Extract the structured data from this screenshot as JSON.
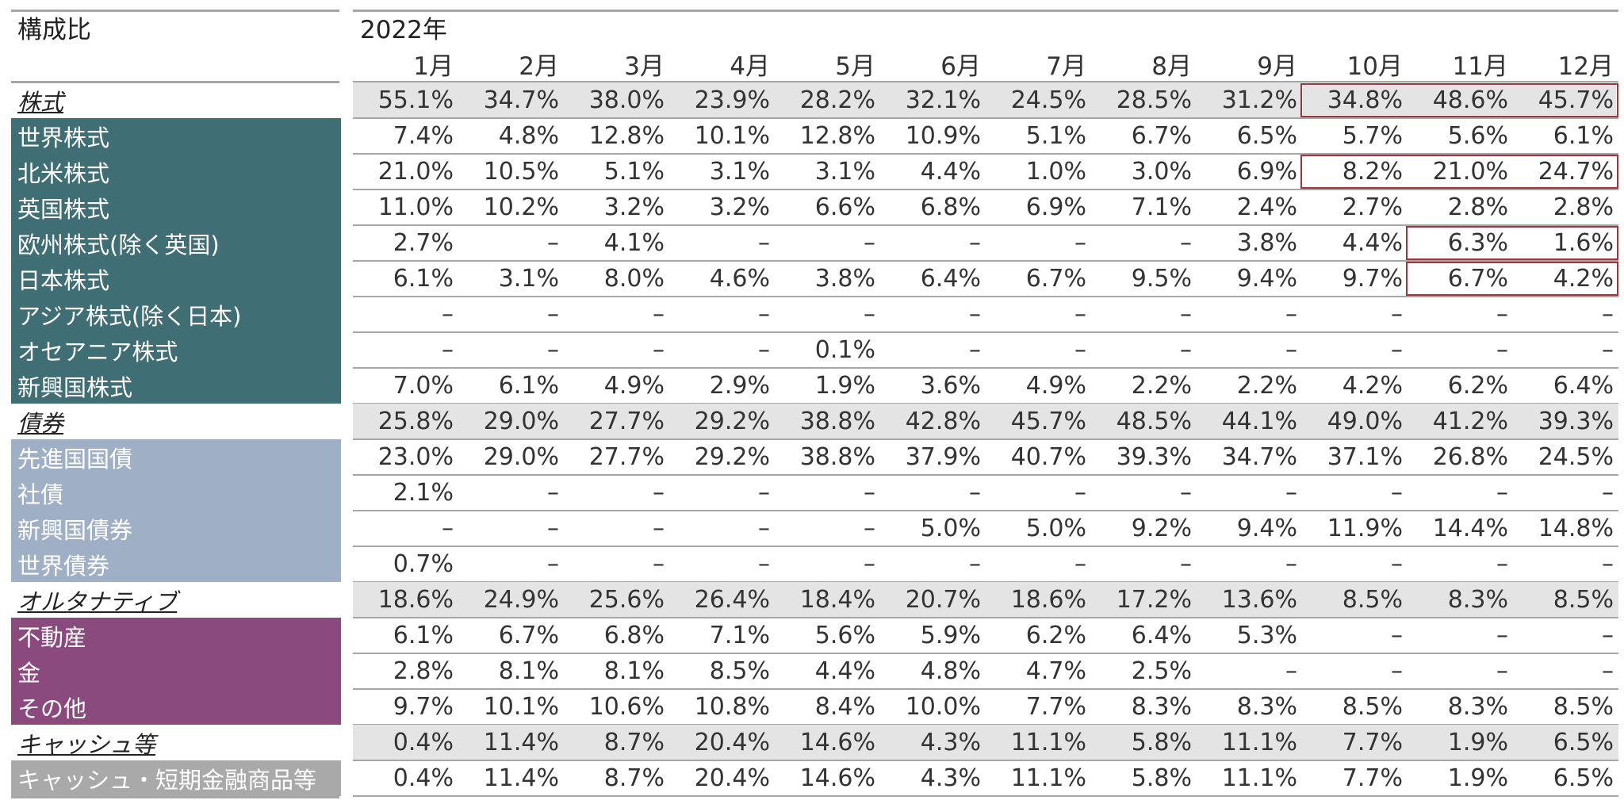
{
  "header": {
    "title": "構成比",
    "year": "2022年",
    "months": [
      "1月",
      "2月",
      "3月",
      "4月",
      "5月",
      "6月",
      "7月",
      "8月",
      "9月",
      "10月",
      "11月",
      "12月"
    ]
  },
  "colors": {
    "株式": "#3f6e74",
    "債券": "#9fb0c6",
    "オルタナティブ": "#8b4a7e",
    "キャッシュ等": "#a9a9a9",
    "category_row": "#e4e4e4",
    "highlight": "#a4343a"
  },
  "rows": [
    {
      "label": "株式",
      "kind": "category",
      "group": "株式",
      "values": [
        "55.1%",
        "34.7%",
        "38.0%",
        "23.9%",
        "28.2%",
        "32.1%",
        "24.5%",
        "28.5%",
        "31.2%",
        "34.8%",
        "48.6%",
        "45.7%"
      ]
    },
    {
      "label": "世界株式",
      "kind": "item",
      "group": "株式",
      "values": [
        "7.4%",
        "4.8%",
        "12.8%",
        "10.1%",
        "12.8%",
        "10.9%",
        "5.1%",
        "6.7%",
        "6.5%",
        "5.7%",
        "5.6%",
        "6.1%"
      ]
    },
    {
      "label": "北米株式",
      "kind": "item",
      "group": "株式",
      "values": [
        "21.0%",
        "10.5%",
        "5.1%",
        "3.1%",
        "3.1%",
        "4.4%",
        "1.0%",
        "3.0%",
        "6.9%",
        "8.2%",
        "21.0%",
        "24.7%"
      ]
    },
    {
      "label": "英国株式",
      "kind": "item",
      "group": "株式",
      "values": [
        "11.0%",
        "10.2%",
        "3.2%",
        "3.2%",
        "6.6%",
        "6.8%",
        "6.9%",
        "7.1%",
        "2.4%",
        "2.7%",
        "2.8%",
        "2.8%"
      ]
    },
    {
      "label": "欧州株式(除く英国)",
      "kind": "item",
      "group": "株式",
      "values": [
        "2.7%",
        "–",
        "4.1%",
        "–",
        "–",
        "–",
        "–",
        "–",
        "3.8%",
        "4.4%",
        "6.3%",
        "1.6%"
      ]
    },
    {
      "label": "日本株式",
      "kind": "item",
      "group": "株式",
      "values": [
        "6.1%",
        "3.1%",
        "8.0%",
        "4.6%",
        "3.8%",
        "6.4%",
        "6.7%",
        "9.5%",
        "9.4%",
        "9.7%",
        "6.7%",
        "4.2%"
      ]
    },
    {
      "label": "アジア株式(除く日本)",
      "kind": "item",
      "group": "株式",
      "values": [
        "–",
        "–",
        "–",
        "–",
        "–",
        "–",
        "–",
        "–",
        "–",
        "–",
        "–",
        "–"
      ]
    },
    {
      "label": "オセアニア株式",
      "kind": "item",
      "group": "株式",
      "values": [
        "–",
        "–",
        "–",
        "–",
        "0.1%",
        "–",
        "–",
        "–",
        "–",
        "–",
        "–",
        "–"
      ]
    },
    {
      "label": "新興国株式",
      "kind": "item",
      "group": "株式",
      "values": [
        "7.0%",
        "6.1%",
        "4.9%",
        "2.9%",
        "1.9%",
        "3.6%",
        "4.9%",
        "2.2%",
        "2.2%",
        "4.2%",
        "6.2%",
        "6.4%"
      ]
    },
    {
      "label": "債券",
      "kind": "category",
      "group": "債券",
      "values": [
        "25.8%",
        "29.0%",
        "27.7%",
        "29.2%",
        "38.8%",
        "42.8%",
        "45.7%",
        "48.5%",
        "44.1%",
        "49.0%",
        "41.2%",
        "39.3%"
      ]
    },
    {
      "label": "先進国国債",
      "kind": "item",
      "group": "債券",
      "values": [
        "23.0%",
        "29.0%",
        "27.7%",
        "29.2%",
        "38.8%",
        "37.9%",
        "40.7%",
        "39.3%",
        "34.7%",
        "37.1%",
        "26.8%",
        "24.5%"
      ]
    },
    {
      "label": "社債",
      "kind": "item",
      "group": "債券",
      "values": [
        "2.1%",
        "–",
        "–",
        "–",
        "–",
        "–",
        "–",
        "–",
        "–",
        "–",
        "–",
        "–"
      ]
    },
    {
      "label": "新興国債券",
      "kind": "item",
      "group": "債券",
      "values": [
        "–",
        "–",
        "–",
        "–",
        "–",
        "5.0%",
        "5.0%",
        "9.2%",
        "9.4%",
        "11.9%",
        "14.4%",
        "14.8%"
      ]
    },
    {
      "label": "世界債券",
      "kind": "item",
      "group": "債券",
      "values": [
        "0.7%",
        "–",
        "–",
        "–",
        "–",
        "–",
        "–",
        "–",
        "–",
        "–",
        "–",
        "–"
      ]
    },
    {
      "label": "オルタナティブ",
      "kind": "category",
      "group": "オルタナティブ",
      "values": [
        "18.6%",
        "24.9%",
        "25.6%",
        "26.4%",
        "18.4%",
        "20.7%",
        "18.6%",
        "17.2%",
        "13.6%",
        "8.5%",
        "8.3%",
        "8.5%"
      ]
    },
    {
      "label": "不動産",
      "kind": "item",
      "group": "オルタナティブ",
      "values": [
        "6.1%",
        "6.7%",
        "6.8%",
        "7.1%",
        "5.6%",
        "5.9%",
        "6.2%",
        "6.4%",
        "5.3%",
        "–",
        "–",
        "–"
      ]
    },
    {
      "label": "金",
      "kind": "item",
      "group": "オルタナティブ",
      "values": [
        "2.8%",
        "8.1%",
        "8.1%",
        "8.5%",
        "4.4%",
        "4.8%",
        "4.7%",
        "2.5%",
        "–",
        "–",
        "–",
        "–"
      ]
    },
    {
      "label": "その他",
      "kind": "item",
      "group": "オルタナティブ",
      "values": [
        "9.7%",
        "10.1%",
        "10.6%",
        "10.8%",
        "8.4%",
        "10.0%",
        "7.7%",
        "8.3%",
        "8.3%",
        "8.5%",
        "8.3%",
        "8.5%"
      ]
    },
    {
      "label": "キャッシュ等",
      "kind": "category",
      "group": "キャッシュ等",
      "values": [
        "0.4%",
        "11.4%",
        "8.7%",
        "20.4%",
        "14.6%",
        "4.3%",
        "11.1%",
        "5.8%",
        "11.1%",
        "7.7%",
        "1.9%",
        "6.5%"
      ]
    },
    {
      "label": "キャッシュ・短期金融商品等",
      "kind": "item",
      "group": "キャッシュ等",
      "values": [
        "0.4%",
        "11.4%",
        "8.7%",
        "20.4%",
        "14.6%",
        "4.3%",
        "11.1%",
        "5.8%",
        "11.1%",
        "7.7%",
        "1.9%",
        "6.5%"
      ]
    }
  ],
  "highlights": [
    {
      "row": "株式",
      "months": [
        "10月",
        "11月",
        "12月"
      ]
    },
    {
      "row": "北米株式",
      "months": [
        "10月",
        "11月",
        "12月"
      ]
    },
    {
      "row": "欧州株式(除く英国)",
      "months": [
        "11月",
        "12月"
      ]
    },
    {
      "row": "日本株式",
      "months": [
        "11月",
        "12月"
      ]
    }
  ],
  "chart_data": {
    "type": "table",
    "title": "構成比",
    "columns": [
      "2022年1月",
      "2月",
      "3月",
      "4月",
      "5月",
      "6月",
      "7月",
      "8月",
      "9月",
      "10月",
      "11月",
      "12月"
    ],
    "unit": "%",
    "series": [
      {
        "name": "株式",
        "values": [
          55.1,
          34.7,
          38.0,
          23.9,
          28.2,
          32.1,
          24.5,
          28.5,
          31.2,
          34.8,
          48.6,
          45.7
        ]
      },
      {
        "name": "世界株式",
        "values": [
          7.4,
          4.8,
          12.8,
          10.1,
          12.8,
          10.9,
          5.1,
          6.7,
          6.5,
          5.7,
          5.6,
          6.1
        ]
      },
      {
        "name": "北米株式",
        "values": [
          21.0,
          10.5,
          5.1,
          3.1,
          3.1,
          4.4,
          1.0,
          3.0,
          6.9,
          8.2,
          21.0,
          24.7
        ]
      },
      {
        "name": "英国株式",
        "values": [
          11.0,
          10.2,
          3.2,
          3.2,
          6.6,
          6.8,
          6.9,
          7.1,
          2.4,
          2.7,
          2.8,
          2.8
        ]
      },
      {
        "name": "欧州株式(除く英国)",
        "values": [
          2.7,
          null,
          4.1,
          null,
          null,
          null,
          null,
          null,
          3.8,
          4.4,
          6.3,
          1.6
        ]
      },
      {
        "name": "日本株式",
        "values": [
          6.1,
          3.1,
          8.0,
          4.6,
          3.8,
          6.4,
          6.7,
          9.5,
          9.4,
          9.7,
          6.7,
          4.2
        ]
      },
      {
        "name": "アジア株式(除く日本)",
        "values": [
          null,
          null,
          null,
          null,
          null,
          null,
          null,
          null,
          null,
          null,
          null,
          null
        ]
      },
      {
        "name": "オセアニア株式",
        "values": [
          null,
          null,
          null,
          null,
          0.1,
          null,
          null,
          null,
          null,
          null,
          null,
          null
        ]
      },
      {
        "name": "新興国株式",
        "values": [
          7.0,
          6.1,
          4.9,
          2.9,
          1.9,
          3.6,
          4.9,
          2.2,
          2.2,
          4.2,
          6.2,
          6.4
        ]
      },
      {
        "name": "債券",
        "values": [
          25.8,
          29.0,
          27.7,
          29.2,
          38.8,
          42.8,
          45.7,
          48.5,
          44.1,
          49.0,
          41.2,
          39.3
        ]
      },
      {
        "name": "先進国国債",
        "values": [
          23.0,
          29.0,
          27.7,
          29.2,
          38.8,
          37.9,
          40.7,
          39.3,
          34.7,
          37.1,
          26.8,
          24.5
        ]
      },
      {
        "name": "社債",
        "values": [
          2.1,
          null,
          null,
          null,
          null,
          null,
          null,
          null,
          null,
          null,
          null,
          null
        ]
      },
      {
        "name": "新興国債券",
        "values": [
          null,
          null,
          null,
          null,
          null,
          5.0,
          5.0,
          9.2,
          9.4,
          11.9,
          14.4,
          14.8
        ]
      },
      {
        "name": "世界債券",
        "values": [
          0.7,
          null,
          null,
          null,
          null,
          null,
          null,
          null,
          null,
          null,
          null,
          null
        ]
      },
      {
        "name": "オルタナティブ",
        "values": [
          18.6,
          24.9,
          25.6,
          26.4,
          18.4,
          20.7,
          18.6,
          17.2,
          13.6,
          8.5,
          8.3,
          8.5
        ]
      },
      {
        "name": "不動産",
        "values": [
          6.1,
          6.7,
          6.8,
          7.1,
          5.6,
          5.9,
          6.2,
          6.4,
          5.3,
          null,
          null,
          null
        ]
      },
      {
        "name": "金",
        "values": [
          2.8,
          8.1,
          8.1,
          8.5,
          4.4,
          4.8,
          4.7,
          2.5,
          null,
          null,
          null,
          null
        ]
      },
      {
        "name": "その他",
        "values": [
          9.7,
          10.1,
          10.6,
          10.8,
          8.4,
          10.0,
          7.7,
          8.3,
          8.3,
          8.5,
          8.3,
          8.5
        ]
      },
      {
        "name": "キャッシュ等",
        "values": [
          0.4,
          11.4,
          8.7,
          20.4,
          14.6,
          4.3,
          11.1,
          5.8,
          11.1,
          7.7,
          1.9,
          6.5
        ]
      },
      {
        "name": "キャッシュ・短期金融商品等",
        "values": [
          0.4,
          11.4,
          8.7,
          20.4,
          14.6,
          4.3,
          11.1,
          5.8,
          11.1,
          7.7,
          1.9,
          6.5
        ]
      }
    ]
  }
}
